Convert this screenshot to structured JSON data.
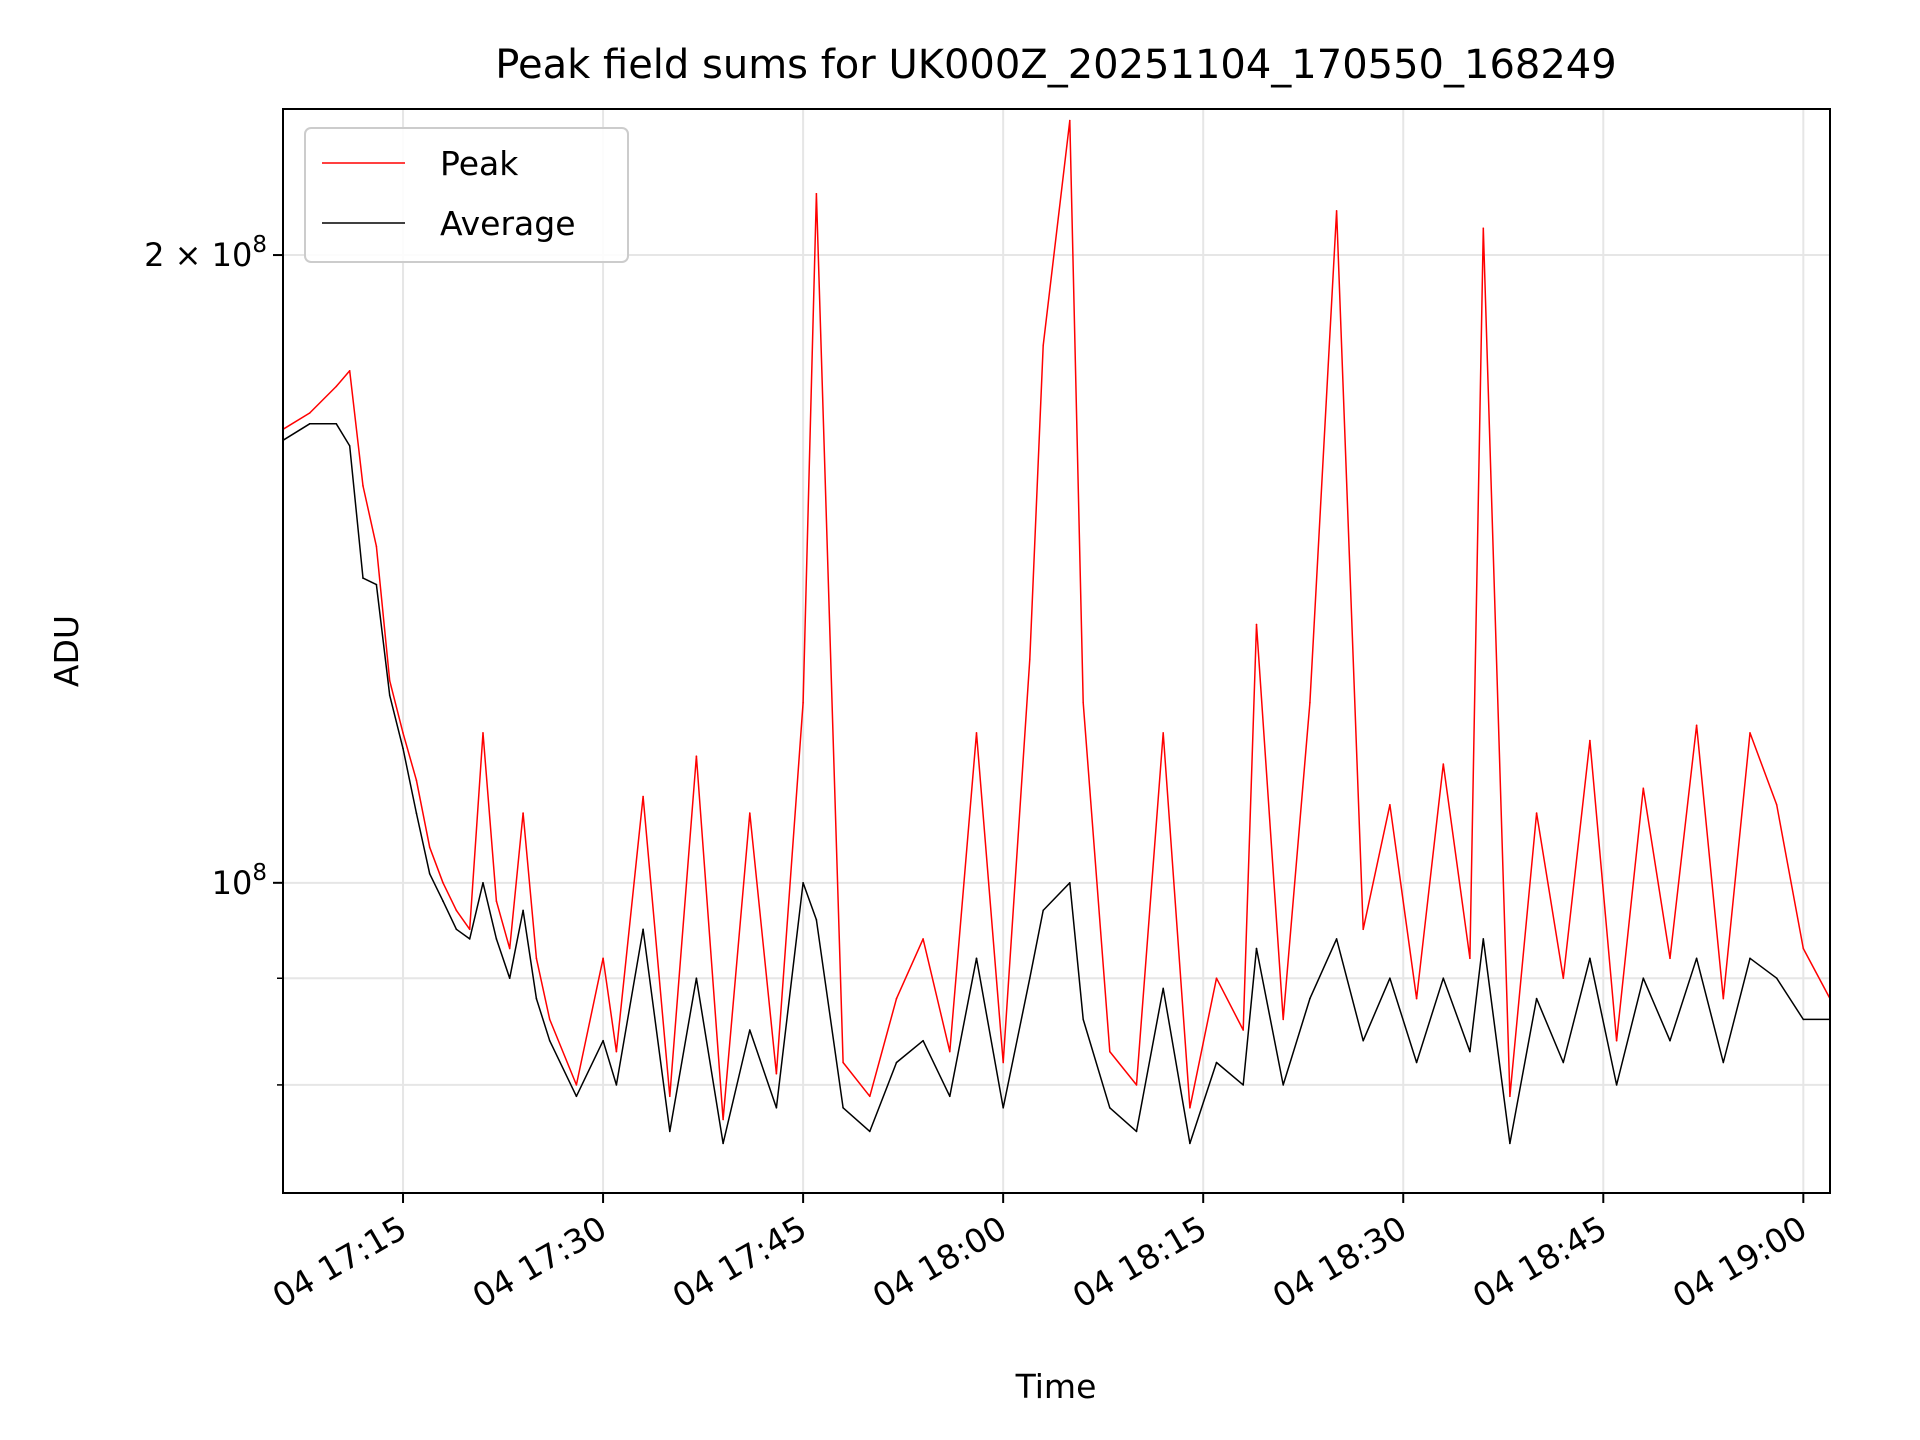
{
  "chart_data": {
    "type": "line",
    "title": "Peak field sums for UK000Z_20251104_170550_168249",
    "xlabel": "Time",
    "ylabel": "ADU",
    "y_scale": "log",
    "ylim": [
      71000000,
      235000000
    ],
    "xlim": [
      "2025-11-04 17:06:00",
      "2025-11-04 19:02:00"
    ],
    "x_ticks": [
      {
        "value": "2025-11-04 17:15:00",
        "label": "04 17:15"
      },
      {
        "value": "2025-11-04 17:30:00",
        "label": "04 17:30"
      },
      {
        "value": "2025-11-04 17:45:00",
        "label": "04 17:45"
      },
      {
        "value": "2025-11-04 18:00:00",
        "label": "04 18:00"
      },
      {
        "value": "2025-11-04 18:15:00",
        "label": "04 18:15"
      },
      {
        "value": "2025-11-04 18:30:00",
        "label": "04 18:30"
      },
      {
        "value": "2025-11-04 18:45:00",
        "label": "04 18:45"
      },
      {
        "value": "2025-11-04 19:00:00",
        "label": "04 19:00"
      }
    ],
    "y_ticks": [
      {
        "value": 200000000,
        "base": "2 × 10",
        "exp": "8"
      },
      {
        "value": 100000000,
        "base": "10",
        "exp": "8"
      }
    ],
    "y_minor_ticks": [
      80000000,
      90000000
    ],
    "grid": true,
    "legend_position": "top-left",
    "series": [
      {
        "name": "Peak",
        "color": "#ff0000",
        "x": [
          "2025-11-04 17:06:00",
          "2025-11-04 17:08:00",
          "2025-11-04 17:10:00",
          "2025-11-04 17:11:00",
          "2025-11-04 17:12:00",
          "2025-11-04 17:13:00",
          "2025-11-04 17:14:00",
          "2025-11-04 17:15:00",
          "2025-11-04 17:16:00",
          "2025-11-04 17:17:00",
          "2025-11-04 17:18:00",
          "2025-11-04 17:19:00",
          "2025-11-04 17:20:00",
          "2025-11-04 17:21:00",
          "2025-11-04 17:22:00",
          "2025-11-04 17:23:00",
          "2025-11-04 17:24:00",
          "2025-11-04 17:25:00",
          "2025-11-04 17:26:00",
          "2025-11-04 17:28:00",
          "2025-11-04 17:30:00",
          "2025-11-04 17:31:00",
          "2025-11-04 17:33:00",
          "2025-11-04 17:35:00",
          "2025-11-04 17:37:00",
          "2025-11-04 17:39:00",
          "2025-11-04 17:41:00",
          "2025-11-04 17:43:00",
          "2025-11-04 17:45:00",
          "2025-11-04 17:46:00",
          "2025-11-04 17:48:00",
          "2025-11-04 17:50:00",
          "2025-11-04 17:52:00",
          "2025-11-04 17:54:00",
          "2025-11-04 17:56:00",
          "2025-11-04 17:58:00",
          "2025-11-04 18:00:00",
          "2025-11-04 18:02:00",
          "2025-11-04 18:03:00",
          "2025-11-04 18:05:00",
          "2025-11-04 18:06:00",
          "2025-11-04 18:08:00",
          "2025-11-04 18:10:00",
          "2025-11-04 18:12:00",
          "2025-11-04 18:14:00",
          "2025-11-04 18:16:00",
          "2025-11-04 18:18:00",
          "2025-11-04 18:19:00",
          "2025-11-04 18:21:00",
          "2025-11-04 18:23:00",
          "2025-11-04 18:25:00",
          "2025-11-04 18:27:00",
          "2025-11-04 18:29:00",
          "2025-11-04 18:31:00",
          "2025-11-04 18:33:00",
          "2025-11-04 18:35:00",
          "2025-11-04 18:36:00",
          "2025-11-04 18:38:00",
          "2025-11-04 18:40:00",
          "2025-11-04 18:42:00",
          "2025-11-04 18:44:00",
          "2025-11-04 18:46:00",
          "2025-11-04 18:48:00",
          "2025-11-04 18:50:00",
          "2025-11-04 18:52:00",
          "2025-11-04 18:54:00",
          "2025-11-04 18:56:00",
          "2025-11-04 18:58:00",
          "2025-11-04 19:00:00",
          "2025-11-04 19:02:00"
        ],
        "values": [
          165000000,
          168000000,
          173000000,
          176000000,
          155000000,
          145000000,
          125000000,
          118000000,
          112000000,
          104000000,
          100000000,
          97000000,
          95000000,
          118000000,
          98000000,
          93000000,
          108000000,
          92000000,
          86000000,
          80000000,
          92000000,
          83000000,
          110000000,
          79000000,
          115000000,
          77000000,
          108000000,
          81000000,
          122000000,
          214000000,
          82000000,
          79000000,
          88000000,
          94000000,
          83000000,
          118000000,
          82000000,
          128000000,
          181000000,
          232000000,
          122000000,
          83000000,
          80000000,
          118000000,
          78000000,
          90000000,
          85000000,
          133000000,
          86000000,
          122000000,
          210000000,
          95000000,
          109000000,
          88000000,
          114000000,
          92000000,
          206000000,
          79000000,
          108000000,
          90000000,
          117000000,
          84000000,
          111000000,
          92000000,
          119000000,
          88000000,
          118000000,
          109000000,
          93000000,
          88000000
        ]
      },
      {
        "name": "Average",
        "color": "#000000",
        "x": [
          "2025-11-04 17:06:00",
          "2025-11-04 17:08:00",
          "2025-11-04 17:10:00",
          "2025-11-04 17:11:00",
          "2025-11-04 17:12:00",
          "2025-11-04 17:13:00",
          "2025-11-04 17:14:00",
          "2025-11-04 17:15:00",
          "2025-11-04 17:16:00",
          "2025-11-04 17:17:00",
          "2025-11-04 17:18:00",
          "2025-11-04 17:19:00",
          "2025-11-04 17:20:00",
          "2025-11-04 17:21:00",
          "2025-11-04 17:22:00",
          "2025-11-04 17:23:00",
          "2025-11-04 17:24:00",
          "2025-11-04 17:25:00",
          "2025-11-04 17:26:00",
          "2025-11-04 17:28:00",
          "2025-11-04 17:30:00",
          "2025-11-04 17:31:00",
          "2025-11-04 17:33:00",
          "2025-11-04 17:35:00",
          "2025-11-04 17:37:00",
          "2025-11-04 17:39:00",
          "2025-11-04 17:41:00",
          "2025-11-04 17:43:00",
          "2025-11-04 17:45:00",
          "2025-11-04 17:46:00",
          "2025-11-04 17:48:00",
          "2025-11-04 17:50:00",
          "2025-11-04 17:52:00",
          "2025-11-04 17:54:00",
          "2025-11-04 17:56:00",
          "2025-11-04 17:58:00",
          "2025-11-04 18:00:00",
          "2025-11-04 18:02:00",
          "2025-11-04 18:03:00",
          "2025-11-04 18:05:00",
          "2025-11-04 18:06:00",
          "2025-11-04 18:08:00",
          "2025-11-04 18:10:00",
          "2025-11-04 18:12:00",
          "2025-11-04 18:14:00",
          "2025-11-04 18:16:00",
          "2025-11-04 18:18:00",
          "2025-11-04 18:19:00",
          "2025-11-04 18:21:00",
          "2025-11-04 18:23:00",
          "2025-11-04 18:25:00",
          "2025-11-04 18:27:00",
          "2025-11-04 18:29:00",
          "2025-11-04 18:31:00",
          "2025-11-04 18:33:00",
          "2025-11-04 18:35:00",
          "2025-11-04 18:36:00",
          "2025-11-04 18:38:00",
          "2025-11-04 18:40:00",
          "2025-11-04 18:42:00",
          "2025-11-04 18:44:00",
          "2025-11-04 18:46:00",
          "2025-11-04 18:48:00",
          "2025-11-04 18:50:00",
          "2025-11-04 18:52:00",
          "2025-11-04 18:54:00",
          "2025-11-04 18:56:00",
          "2025-11-04 18:58:00",
          "2025-11-04 19:00:00",
          "2025-11-04 19:02:00"
        ],
        "values": [
          163000000,
          166000000,
          166000000,
          162000000,
          140000000,
          139000000,
          123000000,
          116000000,
          108000000,
          101000000,
          98000000,
          95000000,
          94000000,
          100000000,
          94000000,
          90000000,
          97000000,
          88000000,
          84000000,
          79000000,
          84000000,
          80000000,
          95000000,
          76000000,
          90000000,
          75000000,
          85000000,
          78000000,
          100000000,
          96000000,
          78000000,
          76000000,
          82000000,
          84000000,
          79000000,
          92000000,
          78000000,
          90000000,
          97000000,
          100000000,
          86000000,
          78000000,
          76000000,
          89000000,
          75000000,
          82000000,
          80000000,
          93000000,
          80000000,
          88000000,
          94000000,
          84000000,
          90000000,
          82000000,
          90000000,
          83000000,
          94000000,
          75000000,
          88000000,
          82000000,
          92000000,
          80000000,
          90000000,
          84000000,
          92000000,
          82000000,
          92000000,
          90000000,
          86000000,
          86000000
        ]
      }
    ]
  }
}
